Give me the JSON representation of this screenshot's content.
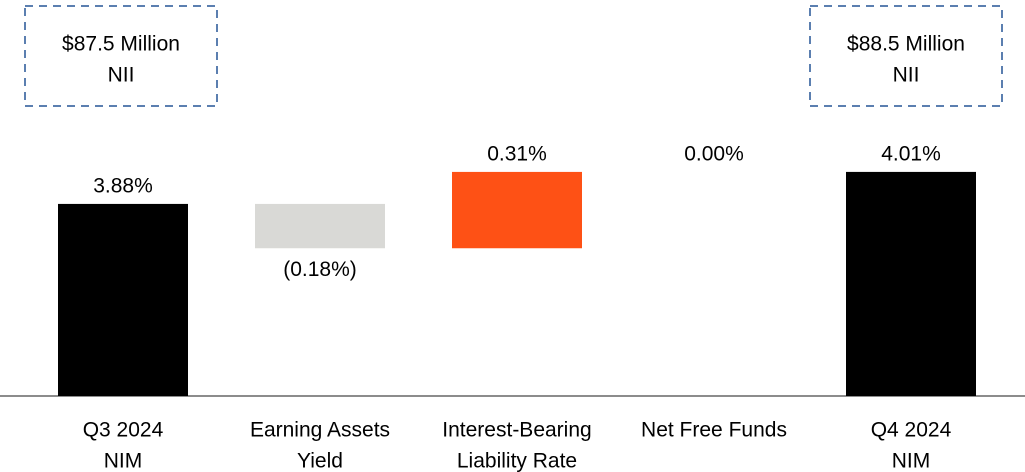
{
  "chart_data": {
    "type": "waterfall",
    "categories": [
      [
        "Q3 2024",
        "NIM"
      ],
      [
        "Earning Assets",
        "Yield"
      ],
      [
        "Interest-Bearing",
        "Liability Rate"
      ],
      [
        "Net Free Funds"
      ],
      [
        "Q4 2024",
        "NIM"
      ]
    ],
    "values": [
      3.88,
      -0.18,
      0.31,
      0.0,
      4.01
    ],
    "value_labels": [
      "3.88%",
      "(0.18%)",
      "0.31%",
      "0.00%",
      "4.01%"
    ],
    "measure": [
      "total",
      "relative",
      "relative",
      "relative",
      "total"
    ],
    "colors": [
      "#000000",
      "#d9d9d6",
      "#fe5115",
      "#d9d9d6",
      "#000000"
    ],
    "ylim": [
      3.1,
      4.7
    ],
    "annotations": [
      [
        "$87.5 Million",
        "NII"
      ],
      [
        "$88.5 Million",
        "NII"
      ]
    ]
  }
}
